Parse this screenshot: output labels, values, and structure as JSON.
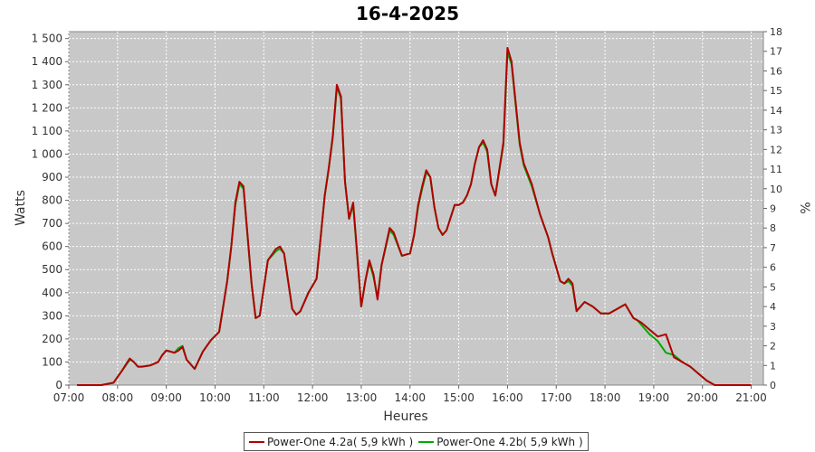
{
  "chart_data": {
    "type": "line",
    "title": "16-4-2025",
    "xlabel": "Heures",
    "ylabel": "Watts",
    "y2label": "%",
    "xlim": [
      "07:00",
      "21:15"
    ],
    "ylim": [
      0,
      1530
    ],
    "y2lim": [
      0,
      18
    ],
    "x_ticks": [
      "07:00",
      "08:00",
      "09:00",
      "10:00",
      "11:00",
      "12:00",
      "13:00",
      "14:00",
      "15:00",
      "16:00",
      "17:00",
      "18:00",
      "19:00",
      "20:00",
      "21:00"
    ],
    "y_ticks": [
      "0",
      "100",
      "200",
      "300",
      "400",
      "500",
      "600",
      "700",
      "800",
      "900",
      "1 000",
      "1 100",
      "1 200",
      "1 300",
      "1 400",
      "1 500"
    ],
    "y2_ticks": [
      "0",
      "1",
      "2",
      "3",
      "4",
      "5",
      "6",
      "7",
      "8",
      "9",
      "10",
      "11",
      "12",
      "13",
      "14",
      "15",
      "16",
      "17",
      "18"
    ],
    "grid": true,
    "legend_position": "bottom",
    "background": "#c8c8c8",
    "x": [
      "07:10",
      "07:40",
      "07:55",
      "08:05",
      "08:15",
      "08:20",
      "08:25",
      "08:30",
      "08:40",
      "08:50",
      "08:55",
      "09:00",
      "09:05",
      "09:10",
      "09:15",
      "09:20",
      "09:25",
      "09:35",
      "09:45",
      "09:55",
      "10:05",
      "10:15",
      "10:20",
      "10:25",
      "10:30",
      "10:35",
      "10:45",
      "10:50",
      "10:55",
      "11:05",
      "11:15",
      "11:20",
      "11:25",
      "11:35",
      "11:40",
      "11:45",
      "11:55",
      "12:05",
      "12:15",
      "12:20",
      "12:25",
      "12:30",
      "12:35",
      "12:40",
      "12:45",
      "12:50",
      "13:00",
      "13:05",
      "13:10",
      "13:15",
      "13:20",
      "13:25",
      "13:35",
      "13:40",
      "13:50",
      "14:00",
      "14:05",
      "14:10",
      "14:15",
      "14:20",
      "14:25",
      "14:30",
      "14:35",
      "14:40",
      "14:45",
      "14:55",
      "15:00",
      "15:05",
      "15:10",
      "15:15",
      "15:20",
      "15:25",
      "15:30",
      "15:35",
      "15:40",
      "15:45",
      "15:55",
      "16:00",
      "16:05",
      "16:15",
      "16:20",
      "16:30",
      "16:40",
      "16:50",
      "16:55",
      "17:05",
      "17:10",
      "17:15",
      "17:20",
      "17:25",
      "17:35",
      "17:45",
      "17:55",
      "18:00",
      "18:05",
      "18:15",
      "18:25",
      "18:30",
      "18:35",
      "18:40",
      "18:45",
      "18:55",
      "19:05",
      "19:15",
      "19:25",
      "19:35",
      "19:45",
      "19:55",
      "20:05",
      "20:15",
      "21:00"
    ],
    "series": [
      {
        "name": "Power-One 4.2a( 5,9 kWh )",
        "color": "#b00000",
        "values": [
          0,
          0,
          10,
          60,
          115,
          100,
          80,
          80,
          85,
          100,
          130,
          150,
          145,
          140,
          150,
          165,
          110,
          70,
          145,
          195,
          230,
          450,
          600,
          790,
          880,
          860,
          440,
          290,
          300,
          540,
          590,
          600,
          570,
          330,
          305,
          320,
          400,
          460,
          820,
          940,
          1080,
          1300,
          1250,
          880,
          720,
          790,
          340,
          450,
          540,
          480,
          370,
          520,
          680,
          660,
          560,
          570,
          650,
          780,
          860,
          930,
          900,
          770,
          680,
          650,
          670,
          780,
          780,
          790,
          820,
          870,
          960,
          1030,
          1060,
          1020,
          870,
          820,
          1050,
          1460,
          1400,
          1050,
          960,
          870,
          740,
          640,
          570,
          450,
          440,
          460,
          440,
          320,
          360,
          340,
          310,
          310,
          310,
          330,
          350,
          320,
          290,
          280,
          270,
          240,
          210,
          220,
          120,
          100,
          80,
          50,
          20,
          0,
          0
        ]
      },
      {
        "name": "Power-One 4.2b( 5,9 kWh )",
        "color": "#00aa00",
        "values": [
          0,
          0,
          10,
          60,
          110,
          100,
          80,
          80,
          85,
          100,
          130,
          150,
          145,
          140,
          160,
          170,
          110,
          70,
          145,
          195,
          230,
          450,
          600,
          780,
          870,
          850,
          440,
          290,
          300,
          540,
          580,
          590,
          570,
          330,
          305,
          320,
          400,
          460,
          820,
          940,
          1070,
          1290,
          1240,
          880,
          720,
          780,
          340,
          450,
          530,
          470,
          380,
          520,
          670,
          650,
          560,
          570,
          650,
          770,
          850,
          920,
          900,
          770,
          680,
          650,
          670,
          780,
          780,
          790,
          820,
          870,
          960,
          1030,
          1050,
          1010,
          870,
          820,
          1040,
          1440,
          1390,
          1040,
          950,
          860,
          740,
          640,
          570,
          450,
          440,
          450,
          430,
          320,
          360,
          340,
          310,
          310,
          310,
          330,
          350,
          320,
          290,
          280,
          260,
          220,
          190,
          140,
          130,
          100,
          80,
          50,
          20,
          0,
          0
        ]
      }
    ]
  }
}
